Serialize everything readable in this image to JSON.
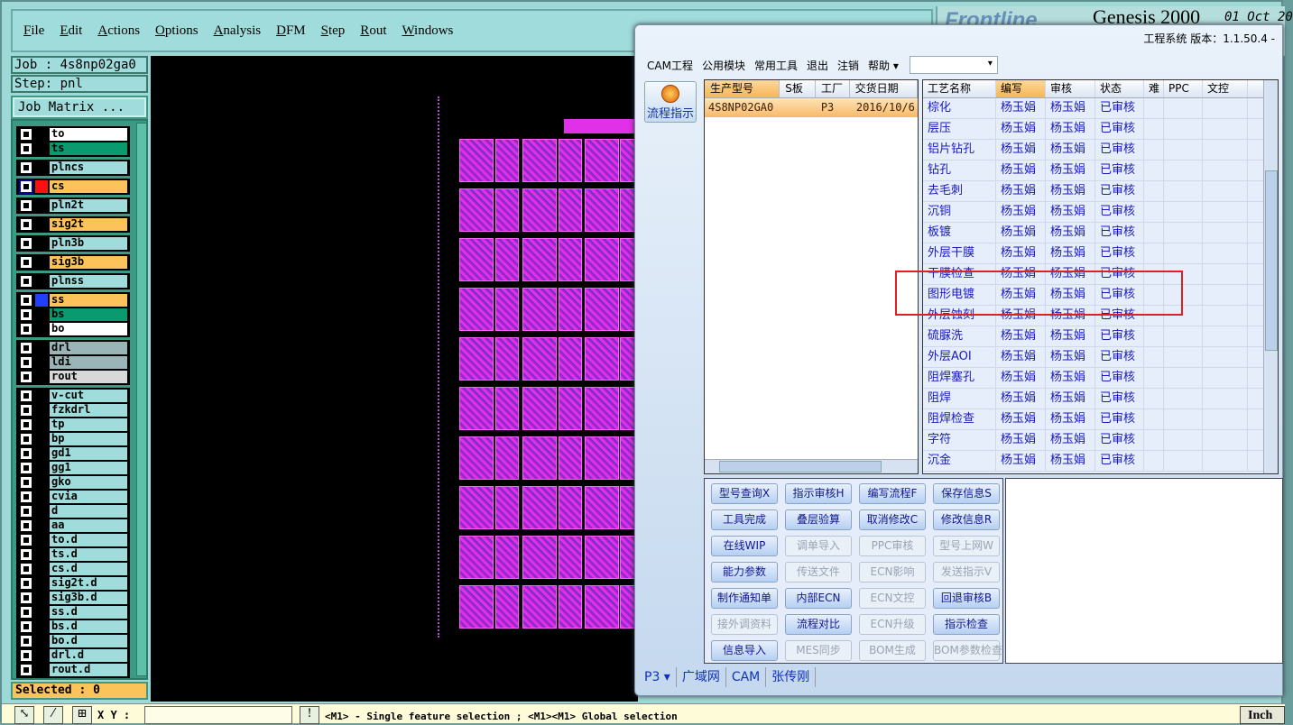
{
  "menu": [
    "File",
    "Edit",
    "Actions",
    "Options",
    "Analysis",
    "DFM",
    "Step",
    "Rout",
    "Windows"
  ],
  "logo": {
    "brand": "Frontline",
    "product": "Genesis 2000",
    "date": "01 Oct 20"
  },
  "job": "Job : 4s8np02ga0",
  "step": "Step: pnl",
  "job_matrix": "Job Matrix ...",
  "layer_groups": [
    [
      {
        "name": "to",
        "color": "#ffffff"
      },
      {
        "name": "ts",
        "color": "#0a9a70"
      }
    ],
    [
      {
        "name": "plncs",
        "color": "#a0dcdb"
      }
    ],
    [
      {
        "name": "cs",
        "color": "#fbc35a",
        "swatch": "#ff1010",
        "selected": true
      }
    ],
    [
      {
        "name": "pln2t",
        "color": "#a0dcdb"
      }
    ],
    [
      {
        "name": "sig2t",
        "color": "#fbc35a"
      }
    ],
    [
      {
        "name": "pln3b",
        "color": "#a0dcdb"
      }
    ],
    [
      {
        "name": "sig3b",
        "color": "#fbc35a"
      }
    ],
    [
      {
        "name": "plnss",
        "color": "#a0dcdb"
      }
    ],
    [
      {
        "name": "ss",
        "color": "#fbc35a",
        "swatch": "#2040ff"
      },
      {
        "name": "bs",
        "color": "#0a9a70"
      },
      {
        "name": "bo",
        "color": "#ffffff"
      }
    ],
    [
      {
        "name": "drl",
        "color": "#9ab4b8"
      },
      {
        "name": "ldi",
        "color": "#9ab4b8"
      },
      {
        "name": "rout",
        "color": "#d8d8d8"
      }
    ],
    [
      {
        "name": "v-cut",
        "color": "#a0dcdb"
      },
      {
        "name": "fzkdrl",
        "color": "#a0dcdb"
      },
      {
        "name": "tp",
        "color": "#a0dcdb"
      },
      {
        "name": "bp",
        "color": "#a0dcdb"
      },
      {
        "name": "gd1",
        "color": "#a0dcdb"
      },
      {
        "name": "gg1",
        "color": "#a0dcdb"
      },
      {
        "name": "gko",
        "color": "#a0dcdb"
      },
      {
        "name": "cvia",
        "color": "#a0dcdb"
      },
      {
        "name": "d",
        "color": "#a0dcdb"
      },
      {
        "name": "aa",
        "color": "#a0dcdb"
      },
      {
        "name": "to.d",
        "color": "#a0dcdb"
      },
      {
        "name": "ts.d",
        "color": "#a0dcdb"
      },
      {
        "name": "cs.d",
        "color": "#a0dcdb"
      },
      {
        "name": "sig2t.d",
        "color": "#a0dcdb"
      },
      {
        "name": "sig3b.d",
        "color": "#a0dcdb"
      },
      {
        "name": "ss.d",
        "color": "#a0dcdb"
      },
      {
        "name": "bs.d",
        "color": "#a0dcdb"
      },
      {
        "name": "bo.d",
        "color": "#a0dcdb"
      },
      {
        "name": "drl.d",
        "color": "#a0dcdb"
      },
      {
        "name": "rout.d",
        "color": "#a0dcdb"
      }
    ]
  ],
  "selected": "Selected : 0",
  "status": {
    "xy_label": "X Y :",
    "message": "<M1> - Single feature selection ; <M1><M1> Global selection",
    "units": "Inch"
  },
  "dialog": {
    "title": "工程系统  版本：1.1.50.4 -",
    "menu": [
      "CAM工程",
      "公用模块",
      "常用工具",
      "退出",
      "注销",
      "帮助 ▾"
    ],
    "flow_button": "流程指示",
    "orders": {
      "headers": [
        "生产型号",
        "S板",
        "工厂",
        "交货日期"
      ],
      "rows": [
        [
          "4S8NP02GA0",
          "",
          "P3",
          "2016/10/6"
        ]
      ]
    },
    "process": {
      "headers": [
        "工艺名称",
        "编写",
        "审核",
        "状态",
        "难",
        "PPC",
        "文控"
      ],
      "rows": [
        [
          "棕化",
          "杨玉娟",
          "杨玉娟",
          "已审核"
        ],
        [
          "层压",
          "杨玉娟",
          "杨玉娟",
          "已审核"
        ],
        [
          "铝片钻孔",
          "杨玉娟",
          "杨玉娟",
          "已审核"
        ],
        [
          "钻孔",
          "杨玉娟",
          "杨玉娟",
          "已审核"
        ],
        [
          "去毛刺",
          "杨玉娟",
          "杨玉娟",
          "已审核"
        ],
        [
          "沉铜",
          "杨玉娟",
          "杨玉娟",
          "已审核"
        ],
        [
          "板镀",
          "杨玉娟",
          "杨玉娟",
          "已审核"
        ],
        [
          "外层干膜",
          "杨玉娟",
          "杨玉娟",
          "已审核"
        ],
        [
          "干膜检查",
          "杨玉娟",
          "杨玉娟",
          "已审核"
        ],
        [
          "图形电镀",
          "杨玉娟",
          "杨玉娟",
          "已审核"
        ],
        [
          "外层蚀刻",
          "杨玉娟",
          "杨玉娟",
          "已审核"
        ],
        [
          "硫脲洗",
          "杨玉娟",
          "杨玉娟",
          "已审核"
        ],
        [
          "外层AOI",
          "杨玉娟",
          "杨玉娟",
          "已审核"
        ],
        [
          "阻焊塞孔",
          "杨玉娟",
          "杨玉娟",
          "已审核"
        ],
        [
          "阻焊",
          "杨玉娟",
          "杨玉娟",
          "已审核"
        ],
        [
          "阻焊检查",
          "杨玉娟",
          "杨玉娟",
          "已审核"
        ],
        [
          "字符",
          "杨玉娟",
          "杨玉娟",
          "已审核"
        ],
        [
          "沉金",
          "杨玉娟",
          "杨玉娟",
          "已审核"
        ]
      ]
    },
    "buttons": [
      {
        "label": "型号查询X",
        "enabled": true
      },
      {
        "label": "指示审核H",
        "enabled": true
      },
      {
        "label": "编写流程F",
        "enabled": true
      },
      {
        "label": "保存信息S",
        "enabled": true
      },
      {
        "label": "工具完成",
        "enabled": true
      },
      {
        "label": "叠层验算",
        "enabled": true
      },
      {
        "label": "取消修改C",
        "enabled": true
      },
      {
        "label": "修改信息R",
        "enabled": true
      },
      {
        "label": "在线WIP",
        "enabled": true
      },
      {
        "label": "调单导入",
        "enabled": false
      },
      {
        "label": "PPC审核",
        "enabled": false
      },
      {
        "label": "型号上网W",
        "enabled": false
      },
      {
        "label": "能力参数",
        "enabled": true
      },
      {
        "label": "传送文件",
        "enabled": false
      },
      {
        "label": "ECN影响",
        "enabled": false
      },
      {
        "label": "发送指示V",
        "enabled": false
      },
      {
        "label": "制作通知单",
        "enabled": true
      },
      {
        "label": "内部ECN",
        "enabled": true
      },
      {
        "label": "ECN文控",
        "enabled": false
      },
      {
        "label": "回退审核B",
        "enabled": true
      },
      {
        "label": "接外调资料",
        "enabled": false
      },
      {
        "label": "流程对比",
        "enabled": true
      },
      {
        "label": "ECN升级",
        "enabled": false
      },
      {
        "label": "指示检查",
        "enabled": true
      },
      {
        "label": "信息导入",
        "enabled": true
      },
      {
        "label": "MES同步",
        "enabled": false
      },
      {
        "label": "BOM生成",
        "enabled": false
      },
      {
        "label": "BOM参数检查",
        "enabled": false
      }
    ],
    "statusbar": [
      "P3 ▾",
      "广域网",
      "CAM",
      "张传刚"
    ]
  }
}
